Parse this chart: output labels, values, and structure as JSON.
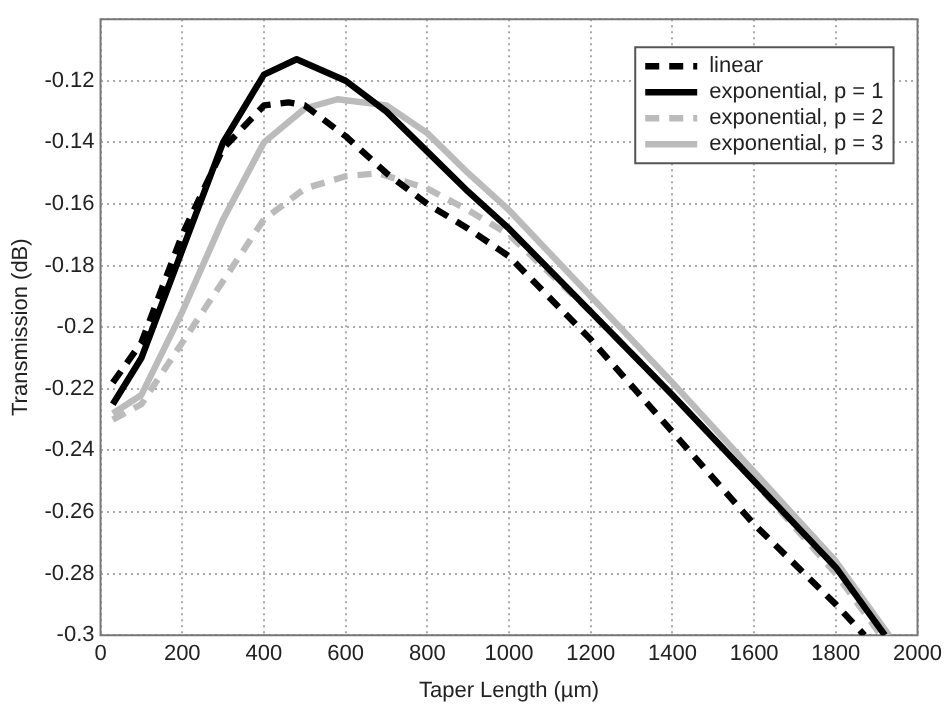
{
  "chart_data": {
    "type": "line",
    "xlabel": "Taper Length (µm)",
    "ylabel": "Transmission (dB)",
    "xlim": [
      0,
      2000
    ],
    "xticks": [
      0,
      200,
      400,
      600,
      800,
      1000,
      1200,
      1400,
      1600,
      1800,
      2000
    ],
    "ylim": [
      -0.3,
      -0.1
    ],
    "yticks": [
      -0.3,
      -0.28,
      -0.26,
      -0.24,
      -0.22,
      -0.2,
      -0.18,
      -0.16,
      -0.14,
      -0.12,
      {
        "value": -0.1,
        "label": null
      }
    ],
    "grid": true,
    "legend": "top right",
    "marker": "none",
    "series": [
      {
        "name": "linear",
        "color": "#000000",
        "line_style": "dashed",
        "x": [
          30,
          100,
          200,
          300,
          400,
          460,
          500,
          600,
          700,
          800,
          900,
          1000,
          1200,
          1400,
          1600,
          1800,
          1870
        ],
        "values": [
          -0.218,
          -0.205,
          -0.17,
          -0.142,
          -0.128,
          -0.127,
          -0.128,
          -0.138,
          -0.15,
          -0.16,
          -0.168,
          -0.177,
          -0.204,
          -0.234,
          -0.264,
          -0.29,
          -0.3
        ]
      },
      {
        "name": "exponential, p = 1",
        "color": "#000000",
        "line_style": "solid",
        "x": [
          30,
          100,
          200,
          300,
          400,
          480,
          600,
          700,
          800,
          900,
          1000,
          1200,
          1400,
          1600,
          1800,
          1920
        ],
        "values": [
          -0.225,
          -0.21,
          -0.175,
          -0.14,
          -0.118,
          -0.113,
          -0.12,
          -0.13,
          -0.143,
          -0.156,
          -0.168,
          -0.195,
          -0.222,
          -0.25,
          -0.278,
          -0.3
        ]
      },
      {
        "name": "exponential, p = 2",
        "color": "#bbbbbb",
        "line_style": "dashed",
        "x": [
          30,
          100,
          200,
          300,
          400,
          500,
          600,
          680,
          800,
          900,
          1000,
          1200,
          1400,
          1600,
          1800,
          1910
        ],
        "values": [
          -0.23,
          -0.225,
          -0.205,
          -0.185,
          -0.165,
          -0.155,
          -0.151,
          -0.15,
          -0.155,
          -0.162,
          -0.17,
          -0.195,
          -0.222,
          -0.25,
          -0.28,
          -0.3
        ]
      },
      {
        "name": "exponential, p = 3",
        "color": "#bbbbbb",
        "line_style": "solid",
        "x": [
          30,
          100,
          200,
          300,
          400,
          500,
          580,
          700,
          800,
          900,
          1000,
          1200,
          1400,
          1600,
          1800,
          1930
        ],
        "values": [
          -0.228,
          -0.222,
          -0.195,
          -0.165,
          -0.14,
          -0.129,
          -0.126,
          -0.128,
          -0.137,
          -0.15,
          -0.162,
          -0.19,
          -0.218,
          -0.247,
          -0.276,
          -0.3
        ]
      }
    ]
  }
}
